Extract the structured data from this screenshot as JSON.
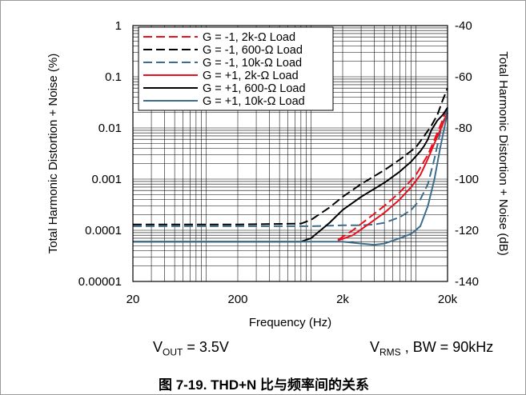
{
  "figure": {
    "caption": "图 7-19. THD+N 比与频率间的关系",
    "conditions": {
      "vout_main": "V",
      "vout_sub": "OUT",
      "vout_value": " = 3.5V",
      "vrms_main": "V",
      "vrms_sub": "RMS",
      "vrms_value": " , BW = 90kHz"
    }
  },
  "chart_data": {
    "type": "line",
    "xlabel": "Frequency (Hz)",
    "ylabel": "Total Harmonic Distortion + Noise (%)",
    "y2label": "Total Harmonic Distortion + Noise (dB)",
    "xscale": "log",
    "yscale": "log",
    "xlim": [
      20,
      20000
    ],
    "ylim": [
      1e-05,
      1
    ],
    "y2lim": [
      -140,
      -40
    ],
    "xticks": [
      20,
      200,
      2000,
      20000
    ],
    "xtick_labels": [
      "20",
      "200",
      "2k",
      "20k"
    ],
    "yticks": [
      1,
      0.1,
      0.01,
      0.001,
      0.0001,
      1e-05
    ],
    "ytick_labels": [
      "1",
      "0.1",
      "0.01",
      "0.001",
      "0.0001",
      "0.00001"
    ],
    "y2ticks": [
      -40,
      -60,
      -80,
      -100,
      -120,
      -140
    ],
    "y2tick_labels": [
      "-40",
      "-60",
      "-80",
      "-100",
      "-120",
      "-140"
    ],
    "grid": true,
    "legend_position": "top-left",
    "series": [
      {
        "name": "G = -1, 2k-Ω Load",
        "color": "#e8101c",
        "dash": "dashed",
        "x": [
          1800,
          2500,
          3500,
          5000,
          7000,
          10000,
          13000,
          16000,
          20000
        ],
        "y": [
          6.5e-05,
          0.0001,
          0.00017,
          0.0003,
          0.00055,
          0.0012,
          0.003,
          0.008,
          0.025
        ]
      },
      {
        "name": "G = -1, 600-Ω Load",
        "color": "#000000",
        "dash": "dashed",
        "x": [
          20,
          200,
          800,
          1000,
          1500,
          2000,
          3000,
          5000,
          7000,
          10000,
          12000,
          14000,
          16000,
          18000,
          20000
        ],
        "y": [
          0.00013,
          0.00013,
          0.000135,
          0.00016,
          0.00028,
          0.00045,
          0.0008,
          0.0015,
          0.0024,
          0.0042,
          0.007,
          0.011,
          0.018,
          0.035,
          0.06
        ]
      },
      {
        "name": "G = -1, 10k-Ω Load",
        "color": "#3c6d8c",
        "dash": "dashed",
        "x": [
          20,
          200,
          1000,
          2000,
          3000,
          4000,
          5000,
          7000,
          9000,
          11000,
          13000,
          15000,
          17000,
          20000
        ],
        "y": [
          0.00012,
          0.00012,
          0.00012,
          0.000125,
          0.000125,
          0.00013,
          0.00014,
          0.00018,
          0.00025,
          0.0004,
          0.0008,
          0.0025,
          0.008,
          0.025
        ]
      },
      {
        "name": "G = +1, 2k-Ω Load",
        "color": "#e8101c",
        "dash": "solid",
        "x": [
          1800,
          2500,
          3500,
          5000,
          7000,
          9000,
          11000,
          13000,
          15000,
          17000,
          20000
        ],
        "y": [
          6.3e-05,
          8e-05,
          0.00013,
          0.00022,
          0.0004,
          0.0007,
          0.0012,
          0.0025,
          0.005,
          0.009,
          0.02
        ]
      },
      {
        "name": "G = +1, 600-Ω Load",
        "color": "#000000",
        "dash": "solid",
        "x": [
          20,
          200,
          800,
          1000,
          1500,
          2000,
          3000,
          5000,
          7000,
          9000,
          11000,
          12000,
          13000,
          14000,
          16000,
          18000,
          20000
        ],
        "y": [
          6e-05,
          6e-05,
          6e-05,
          7e-05,
          0.00014,
          0.00025,
          0.00045,
          0.00085,
          0.0014,
          0.0022,
          0.0035,
          0.0045,
          0.006,
          0.009,
          0.014,
          0.018,
          0.025
        ]
      },
      {
        "name": "G = +1, 10k-Ω Load",
        "color": "#3c6d8c",
        "dash": "solid",
        "x": [
          20,
          200,
          1000,
          2000,
          3000,
          4000,
          5000,
          7000,
          9000,
          11000,
          13000,
          15000,
          17000,
          20000
        ],
        "y": [
          6e-05,
          6e-05,
          6e-05,
          6e-05,
          5.5e-05,
          5.2e-05,
          5.5e-05,
          7e-05,
          8.5e-05,
          0.00012,
          0.0003,
          0.001,
          0.004,
          0.02
        ]
      }
    ]
  }
}
